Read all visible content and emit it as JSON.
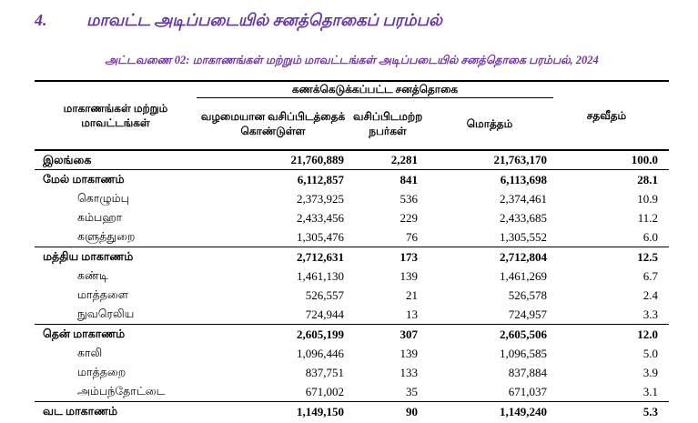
{
  "colors": {
    "heading_purple": "#6633a6",
    "caption_purple": "#7030a0",
    "text": "#000000",
    "rule": "#000000",
    "background": "#ffffff"
  },
  "heading": {
    "number": "4.",
    "text": "மாவட்ட அடிப்படையில் சனத்தொகைப் பரம்பல்"
  },
  "caption": "அட்டவணை 02: மாகாணங்கள் மற்றும் மாவட்டங்கள் அடிப்படையில் சனத்தொகை பரம்பல், 2024",
  "table": {
    "headers": {
      "name": "மாகாணங்கள் மற்றும் மாவட்டங்கள்",
      "group": "கணக்கெடுக்கப்பட்ட சனத்தொகை",
      "usual": "வழமையான வசிப்பிடத்தைக் கொண்டுள்ள",
      "homeless": "வசிப்பிடமற்ற நபர்கள்",
      "total": "மொத்தம்",
      "percent": "சதவீதம்"
    },
    "rows": [
      {
        "name": "இலங்கை",
        "level": "country",
        "usual": "21,760,889",
        "homeless": "2,281",
        "total": "21,763,170",
        "percent": "100.0"
      },
      {
        "name": "மேல் மாகாணம்",
        "level": "province",
        "usual": "6,112,857",
        "homeless": "841",
        "total": "6,113,698",
        "percent": "28.1"
      },
      {
        "name": "கொழும்பு",
        "level": "district",
        "usual": "2,373,925",
        "homeless": "536",
        "total": "2,374,461",
        "percent": "10.9"
      },
      {
        "name": "கம்பஹா",
        "level": "district",
        "usual": "2,433,456",
        "homeless": "229",
        "total": "2,433,685",
        "percent": "11.2"
      },
      {
        "name": "களுத்துறை",
        "level": "district",
        "usual": "1,305,476",
        "homeless": "76",
        "total": "1,305,552",
        "percent": "6.0"
      },
      {
        "name": "மத்திய மாகாணம்",
        "level": "province",
        "usual": "2,712,631",
        "homeless": "173",
        "total": "2,712,804",
        "percent": "12.5"
      },
      {
        "name": "கண்டி",
        "level": "district",
        "usual": "1,461,130",
        "homeless": "139",
        "total": "1,461,269",
        "percent": "6.7"
      },
      {
        "name": "மாத்தளை",
        "level": "district",
        "usual": "526,557",
        "homeless": "21",
        "total": "526,578",
        "percent": "2.4"
      },
      {
        "name": "நுவரெலிய",
        "level": "district",
        "usual": "724,944",
        "homeless": "13",
        "total": "724,957",
        "percent": "3.3"
      },
      {
        "name": "தென் மாகாணம்",
        "level": "province",
        "usual": "2,605,199",
        "homeless": "307",
        "total": "2,605,506",
        "percent": "12.0"
      },
      {
        "name": "காலி",
        "level": "district",
        "usual": "1,096,446",
        "homeless": "139",
        "total": "1,096,585",
        "percent": "5.0"
      },
      {
        "name": "மாத்தறை",
        "level": "district",
        "usual": "837,751",
        "homeless": "133",
        "total": "837,884",
        "percent": "3.9"
      },
      {
        "name": "அம்பந்தோட்டை",
        "level": "district",
        "usual": "671,002",
        "homeless": "35",
        "total": "671,037",
        "percent": "3.1"
      },
      {
        "name": "வட மாகாணம்",
        "level": "province",
        "usual": "1,149,150",
        "homeless": "90",
        "total": "1,149,240",
        "percent": "5.3"
      }
    ]
  }
}
